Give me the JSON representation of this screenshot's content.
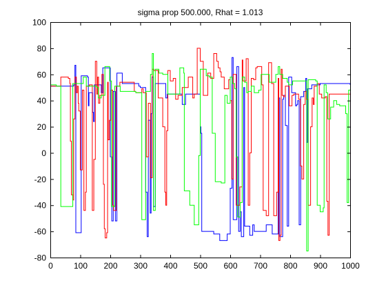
{
  "chart_data": {
    "type": "line",
    "title": "sigma prop 500.000, Rhat = 1.013",
    "xlabel": "",
    "ylabel": "",
    "xlim": [
      0,
      1000
    ],
    "ylim": [
      -80,
      100
    ],
    "xticks": [
      "0",
      "100",
      "200",
      "300",
      "400",
      "500",
      "600",
      "700",
      "800",
      "900",
      "1000"
    ],
    "yticks": [
      "-80",
      "-60",
      "-40",
      "-20",
      "0",
      "20",
      "40",
      "60",
      "80",
      "100"
    ],
    "grid": false,
    "legend": "none",
    "series": [
      {
        "color": "#0000ff",
        "steps": [
          [
            0,
            51
          ],
          [
            78,
            52
          ],
          [
            82,
            67
          ],
          [
            85,
            -61
          ],
          [
            103,
            59
          ],
          [
            124,
            58
          ],
          [
            127,
            36
          ],
          [
            129,
            46
          ],
          [
            141,
            31
          ],
          [
            144,
            24
          ],
          [
            147,
            52
          ],
          [
            170,
            46
          ],
          [
            175,
            65
          ],
          [
            200,
            -3
          ],
          [
            205,
            -52
          ],
          [
            210,
            47
          ],
          [
            217,
            -52
          ],
          [
            222,
            61
          ],
          [
            240,
            53
          ],
          [
            295,
            51
          ],
          [
            300,
            50
          ],
          [
            318,
            -30
          ],
          [
            323,
            -64
          ],
          [
            327,
            25
          ],
          [
            333,
            -46
          ],
          [
            336,
            30
          ],
          [
            339,
            58
          ],
          [
            344,
            -41
          ],
          [
            350,
            53
          ],
          [
            385,
            42
          ],
          [
            390,
            45
          ],
          [
            440,
            37
          ],
          [
            451,
            45
          ],
          [
            500,
            20
          ],
          [
            502,
            15
          ],
          [
            505,
            -60
          ],
          [
            545,
            -62
          ],
          [
            565,
            -67
          ],
          [
            590,
            -62
          ],
          [
            600,
            -27
          ],
          [
            606,
            73
          ],
          [
            610,
            -51
          ],
          [
            622,
            66
          ],
          [
            628,
            -60
          ],
          [
            633,
            -45
          ],
          [
            637,
            -64
          ],
          [
            645,
            50
          ],
          [
            648,
            -56
          ],
          [
            665,
            -63
          ],
          [
            675,
            -55
          ],
          [
            680,
            -60
          ],
          [
            720,
            -55
          ],
          [
            740,
            -62
          ],
          [
            760,
            42
          ],
          [
            765,
            -64
          ],
          [
            775,
            41
          ],
          [
            778,
            44
          ],
          [
            784,
            21
          ],
          [
            790,
            -56
          ],
          [
            795,
            58
          ],
          [
            805,
            46
          ],
          [
            818,
            36
          ],
          [
            822,
            37
          ],
          [
            825,
            40
          ],
          [
            830,
            -55
          ],
          [
            835,
            43
          ],
          [
            845,
            47
          ],
          [
            852,
            57
          ],
          [
            855,
            8
          ],
          [
            858,
            49
          ],
          [
            872,
            52
          ],
          [
            900,
            53
          ],
          [
            930,
            53
          ],
          [
            1000,
            52
          ]
        ]
      },
      {
        "color": "#ff0000",
        "steps": [
          [
            0,
            51
          ],
          [
            35,
            58
          ],
          [
            60,
            57
          ],
          [
            65,
            53
          ],
          [
            67,
            9
          ],
          [
            70,
            -32
          ],
          [
            75,
            -36
          ],
          [
            78,
            26
          ],
          [
            82,
            58
          ],
          [
            87,
            46
          ],
          [
            90,
            51
          ],
          [
            93,
            38
          ],
          [
            95,
            32
          ],
          [
            100,
            -13
          ],
          [
            107,
            48
          ],
          [
            112,
            -44
          ],
          [
            117,
            -30
          ],
          [
            120,
            51
          ],
          [
            130,
            52
          ],
          [
            140,
            -44
          ],
          [
            145,
            -5
          ],
          [
            150,
            70
          ],
          [
            155,
            45
          ],
          [
            158,
            58
          ],
          [
            161,
            38
          ],
          [
            165,
            44
          ],
          [
            172,
            60
          ],
          [
            177,
            -24
          ],
          [
            180,
            -58
          ],
          [
            183,
            -65
          ],
          [
            188,
            -61
          ],
          [
            191,
            54
          ],
          [
            193,
            10
          ],
          [
            197,
            25
          ],
          [
            203,
            48
          ],
          [
            208,
            -40
          ],
          [
            211,
            -44
          ],
          [
            220,
            51
          ],
          [
            232,
            54
          ],
          [
            280,
            47
          ],
          [
            285,
            46
          ],
          [
            305,
            49
          ],
          [
            310,
            46
          ],
          [
            320,
            -3
          ],
          [
            327,
            38
          ],
          [
            334,
            -19
          ],
          [
            340,
            64
          ],
          [
            345,
            63
          ],
          [
            360,
            42
          ],
          [
            375,
            20
          ],
          [
            382,
            -30
          ],
          [
            385,
            -40
          ],
          [
            388,
            17
          ],
          [
            392,
            63
          ],
          [
            400,
            55
          ],
          [
            410,
            57
          ],
          [
            418,
            41
          ],
          [
            426,
            44
          ],
          [
            440,
            50
          ],
          [
            460,
            58
          ],
          [
            475,
            42
          ],
          [
            480,
            45
          ],
          [
            490,
            80
          ],
          [
            500,
            70
          ],
          [
            510,
            44
          ],
          [
            525,
            61
          ],
          [
            535,
            57
          ],
          [
            545,
            76
          ],
          [
            555,
            70
          ],
          [
            560,
            65
          ],
          [
            566,
            62
          ],
          [
            570,
            58
          ],
          [
            580,
            49
          ],
          [
            587,
            49
          ],
          [
            595,
            56
          ],
          [
            600,
            40
          ],
          [
            605,
            -20
          ],
          [
            610,
            60
          ],
          [
            620,
            -40
          ],
          [
            632,
            -26
          ],
          [
            640,
            71
          ],
          [
            642,
            55
          ],
          [
            653,
            72
          ],
          [
            660,
            -40
          ],
          [
            665,
            0
          ],
          [
            670,
            57
          ],
          [
            678,
            56
          ],
          [
            685,
            65
          ],
          [
            690,
            66
          ],
          [
            705,
            52
          ],
          [
            710,
            -44
          ],
          [
            720,
            -48
          ],
          [
            728,
            69
          ],
          [
            738,
            53
          ],
          [
            745,
            -48
          ],
          [
            755,
            -30
          ],
          [
            760,
            57
          ],
          [
            762,
            -67
          ],
          [
            766,
            -63
          ],
          [
            770,
            64
          ],
          [
            773,
            44
          ],
          [
            778,
            43
          ],
          [
            784,
            51
          ],
          [
            791,
            51
          ],
          [
            797,
            36
          ],
          [
            806,
            44
          ],
          [
            812,
            45
          ],
          [
            828,
            41
          ],
          [
            834,
            -10
          ],
          [
            839,
            -20
          ],
          [
            845,
            37
          ],
          [
            850,
            47
          ],
          [
            854,
            41
          ],
          [
            860,
            -40
          ],
          [
            868,
            20
          ],
          [
            873,
            42
          ],
          [
            877,
            37
          ],
          [
            880,
            51
          ],
          [
            890,
            53
          ],
          [
            897,
            45
          ],
          [
            905,
            42
          ],
          [
            917,
            43
          ],
          [
            922,
            -37
          ],
          [
            926,
            -63
          ],
          [
            930,
            45
          ],
          [
            1000,
            45
          ]
        ]
      },
      {
        "color": "#00ff00",
        "steps": [
          [
            0,
            52
          ],
          [
            20,
            51
          ],
          [
            35,
            -41
          ],
          [
            75,
            53
          ],
          [
            110,
            58
          ],
          [
            120,
            51
          ],
          [
            155,
            50
          ],
          [
            160,
            42
          ],
          [
            170,
            44
          ],
          [
            182,
            66
          ],
          [
            198,
            55
          ],
          [
            204,
            -41
          ],
          [
            215,
            51
          ],
          [
            233,
            47
          ],
          [
            285,
            46
          ],
          [
            305,
            -51
          ],
          [
            318,
            47
          ],
          [
            334,
            60
          ],
          [
            340,
            76
          ],
          [
            344,
            -44
          ],
          [
            350,
            64
          ],
          [
            362,
            61
          ],
          [
            375,
            60
          ],
          [
            392,
            45
          ],
          [
            432,
            65
          ],
          [
            445,
            61
          ],
          [
            447,
            -29
          ],
          [
            465,
            -40
          ],
          [
            480,
            -55
          ],
          [
            495,
            -2
          ],
          [
            500,
            64
          ],
          [
            520,
            59
          ],
          [
            530,
            58
          ],
          [
            540,
            15
          ],
          [
            550,
            -22
          ],
          [
            570,
            -23
          ],
          [
            582,
            44
          ],
          [
            590,
            38
          ],
          [
            600,
            58
          ],
          [
            607,
            53
          ],
          [
            615,
            49
          ],
          [
            620,
            -3
          ],
          [
            625,
            -49
          ],
          [
            633,
            -38
          ],
          [
            640,
            58
          ],
          [
            648,
            54
          ],
          [
            655,
            46
          ],
          [
            660,
            47
          ],
          [
            670,
            51
          ],
          [
            680,
            46
          ],
          [
            695,
            48
          ],
          [
            703,
            60
          ],
          [
            730,
            54
          ],
          [
            752,
            60
          ],
          [
            760,
            66
          ],
          [
            765,
            60
          ],
          [
            775,
            57
          ],
          [
            790,
            54
          ],
          [
            795,
            52
          ],
          [
            808,
            55
          ],
          [
            850,
            55
          ],
          [
            855,
            -75
          ],
          [
            860,
            56
          ],
          [
            885,
            55
          ],
          [
            890,
            -40
          ],
          [
            900,
            -45
          ],
          [
            910,
            -42
          ],
          [
            913,
            52
          ],
          [
            920,
            46
          ],
          [
            925,
            26
          ],
          [
            935,
            35
          ],
          [
            945,
            40
          ],
          [
            955,
            37
          ],
          [
            965,
            36
          ],
          [
            985,
            30
          ],
          [
            990,
            -38
          ],
          [
            995,
            48
          ]
        ]
      }
    ]
  }
}
